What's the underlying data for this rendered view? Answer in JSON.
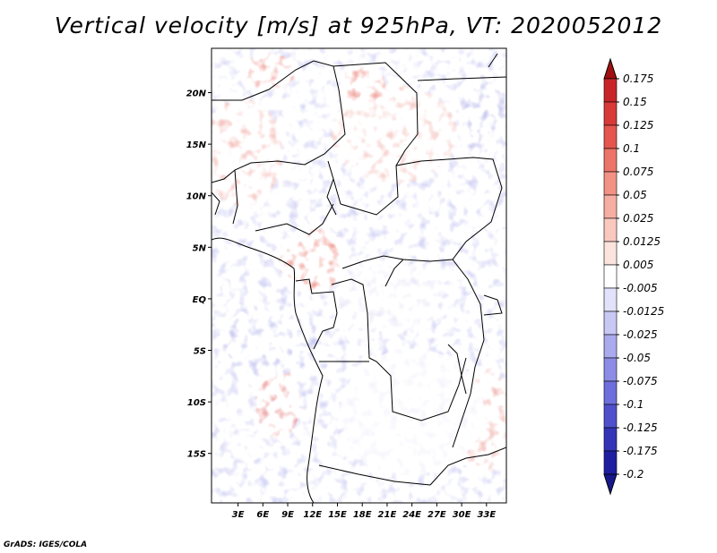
{
  "title": "Vertical velocity [m/s] at 925hPa, VT: 2020052012",
  "footer": "GrADS: IGES/COLA",
  "map": {
    "lon_range": [
      -0.2,
      35.4
    ],
    "lat_range": [
      -19.8,
      24.3
    ],
    "lon_ticks": [
      {
        "value": 3,
        "label": "3E"
      },
      {
        "value": 6,
        "label": "6E"
      },
      {
        "value": 9,
        "label": "9E"
      },
      {
        "value": 12,
        "label": "12E"
      },
      {
        "value": 15,
        "label": "15E"
      },
      {
        "value": 18,
        "label": "18E"
      },
      {
        "value": 21,
        "label": "21E"
      },
      {
        "value": 24,
        "label": "24E"
      },
      {
        "value": 27,
        "label": "27E"
      },
      {
        "value": 30,
        "label": "30E"
      },
      {
        "value": 33,
        "label": "33E"
      }
    ],
    "lat_ticks": [
      {
        "value": 20,
        "label": "20N"
      },
      {
        "value": 15,
        "label": "15N"
      },
      {
        "value": 10,
        "label": "10N"
      },
      {
        "value": 5,
        "label": "5N"
      },
      {
        "value": 0,
        "label": "EQ"
      },
      {
        "value": -5,
        "label": "5S"
      },
      {
        "value": -10,
        "label": "10S"
      },
      {
        "value": -15,
        "label": "15S"
      }
    ]
  },
  "colorbar": {
    "levels": [
      {
        "label": "0.175",
        "color": "#b4141e"
      },
      {
        "label": "0.15",
        "color": "#c8252a"
      },
      {
        "label": "0.125",
        "color": "#d83a38"
      },
      {
        "label": "0.1",
        "color": "#e4564e"
      },
      {
        "label": "0.075",
        "color": "#ec7468"
      },
      {
        "label": "0.05",
        "color": "#f29284"
      },
      {
        "label": "0.025",
        "color": "#f6aea2"
      },
      {
        "label": "0.0125",
        "color": "#f9c9c0"
      },
      {
        "label": "0.005",
        "color": "#fce4de"
      },
      {
        "label": "-0.005",
        "color": "#ffffff"
      },
      {
        "label": "-0.0125",
        "color": "#e2e2fa"
      },
      {
        "label": "-0.025",
        "color": "#c8c8f4"
      },
      {
        "label": "-0.05",
        "color": "#aaaaee"
      },
      {
        "label": "-0.075",
        "color": "#8c8ce6"
      },
      {
        "label": "-0.1",
        "color": "#6e6edc"
      },
      {
        "label": "-0.125",
        "color": "#5050cc"
      },
      {
        "label": "-0.175",
        "color": "#3434b8"
      },
      {
        "label": "-0.2",
        "color": "#1e1ea0"
      }
    ],
    "top_color": "#a01010",
    "bottom_color": "#18188c"
  }
}
